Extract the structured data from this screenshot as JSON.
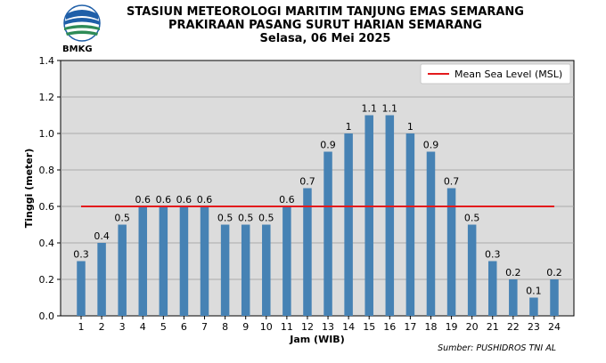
{
  "header": {
    "logo_text": "BMKG",
    "title_line1": "STASIUN METEOROLOGI MARITIM TANJUNG EMAS SEMARANG",
    "title_line2": "PRAKIRAAN PASANG SURUT HARIAN SEMARANG",
    "title_line3": "Selasa, 06 Mei 2025"
  },
  "source_note": "Sumber: PUSHIDROS TNI AL",
  "colors": {
    "bar": "#4682b4",
    "msl_line": "#e31a1c",
    "plot_background": "#dcdcdc"
  },
  "chart_data": {
    "type": "bar",
    "categories": [
      "1",
      "2",
      "3",
      "4",
      "5",
      "6",
      "7",
      "8",
      "9",
      "10",
      "11",
      "12",
      "13",
      "14",
      "15",
      "16",
      "17",
      "18",
      "19",
      "20",
      "21",
      "22",
      "23",
      "24"
    ],
    "values": [
      0.3,
      0.4,
      0.5,
      0.6,
      0.6,
      0.6,
      0.6,
      0.5,
      0.5,
      0.5,
      0.6,
      0.7,
      0.9,
      1,
      1.1,
      1.1,
      1,
      0.9,
      0.7,
      0.5,
      0.3,
      0.2,
      0.1,
      0.2
    ],
    "data_labels": [
      "0.3",
      "0.4",
      "0.5",
      "0.6",
      "0.6",
      "0.6",
      "0.6",
      "0.5",
      "0.5",
      "0.5",
      "0.6",
      "0.7",
      "0.9",
      "1",
      "1.1",
      "1.1",
      "1",
      "0.9",
      "0.7",
      "0.5",
      "0.3",
      "0.2",
      "0.1",
      "0.2"
    ],
    "xlabel": "Jam (WIB)",
    "ylabel": "Tinggi (meter)",
    "ylim": [
      0,
      1.4
    ],
    "yticks": [
      "0.0",
      "0.2",
      "0.4",
      "0.6",
      "0.8",
      "1.0",
      "1.2",
      "1.4"
    ],
    "grid": "horizontal",
    "reference_line": {
      "name": "Mean Sea Level (MSL)",
      "value": 0.6
    },
    "legend": {
      "placement": "top-right",
      "entries": [
        "Mean Sea Level (MSL)"
      ]
    }
  }
}
